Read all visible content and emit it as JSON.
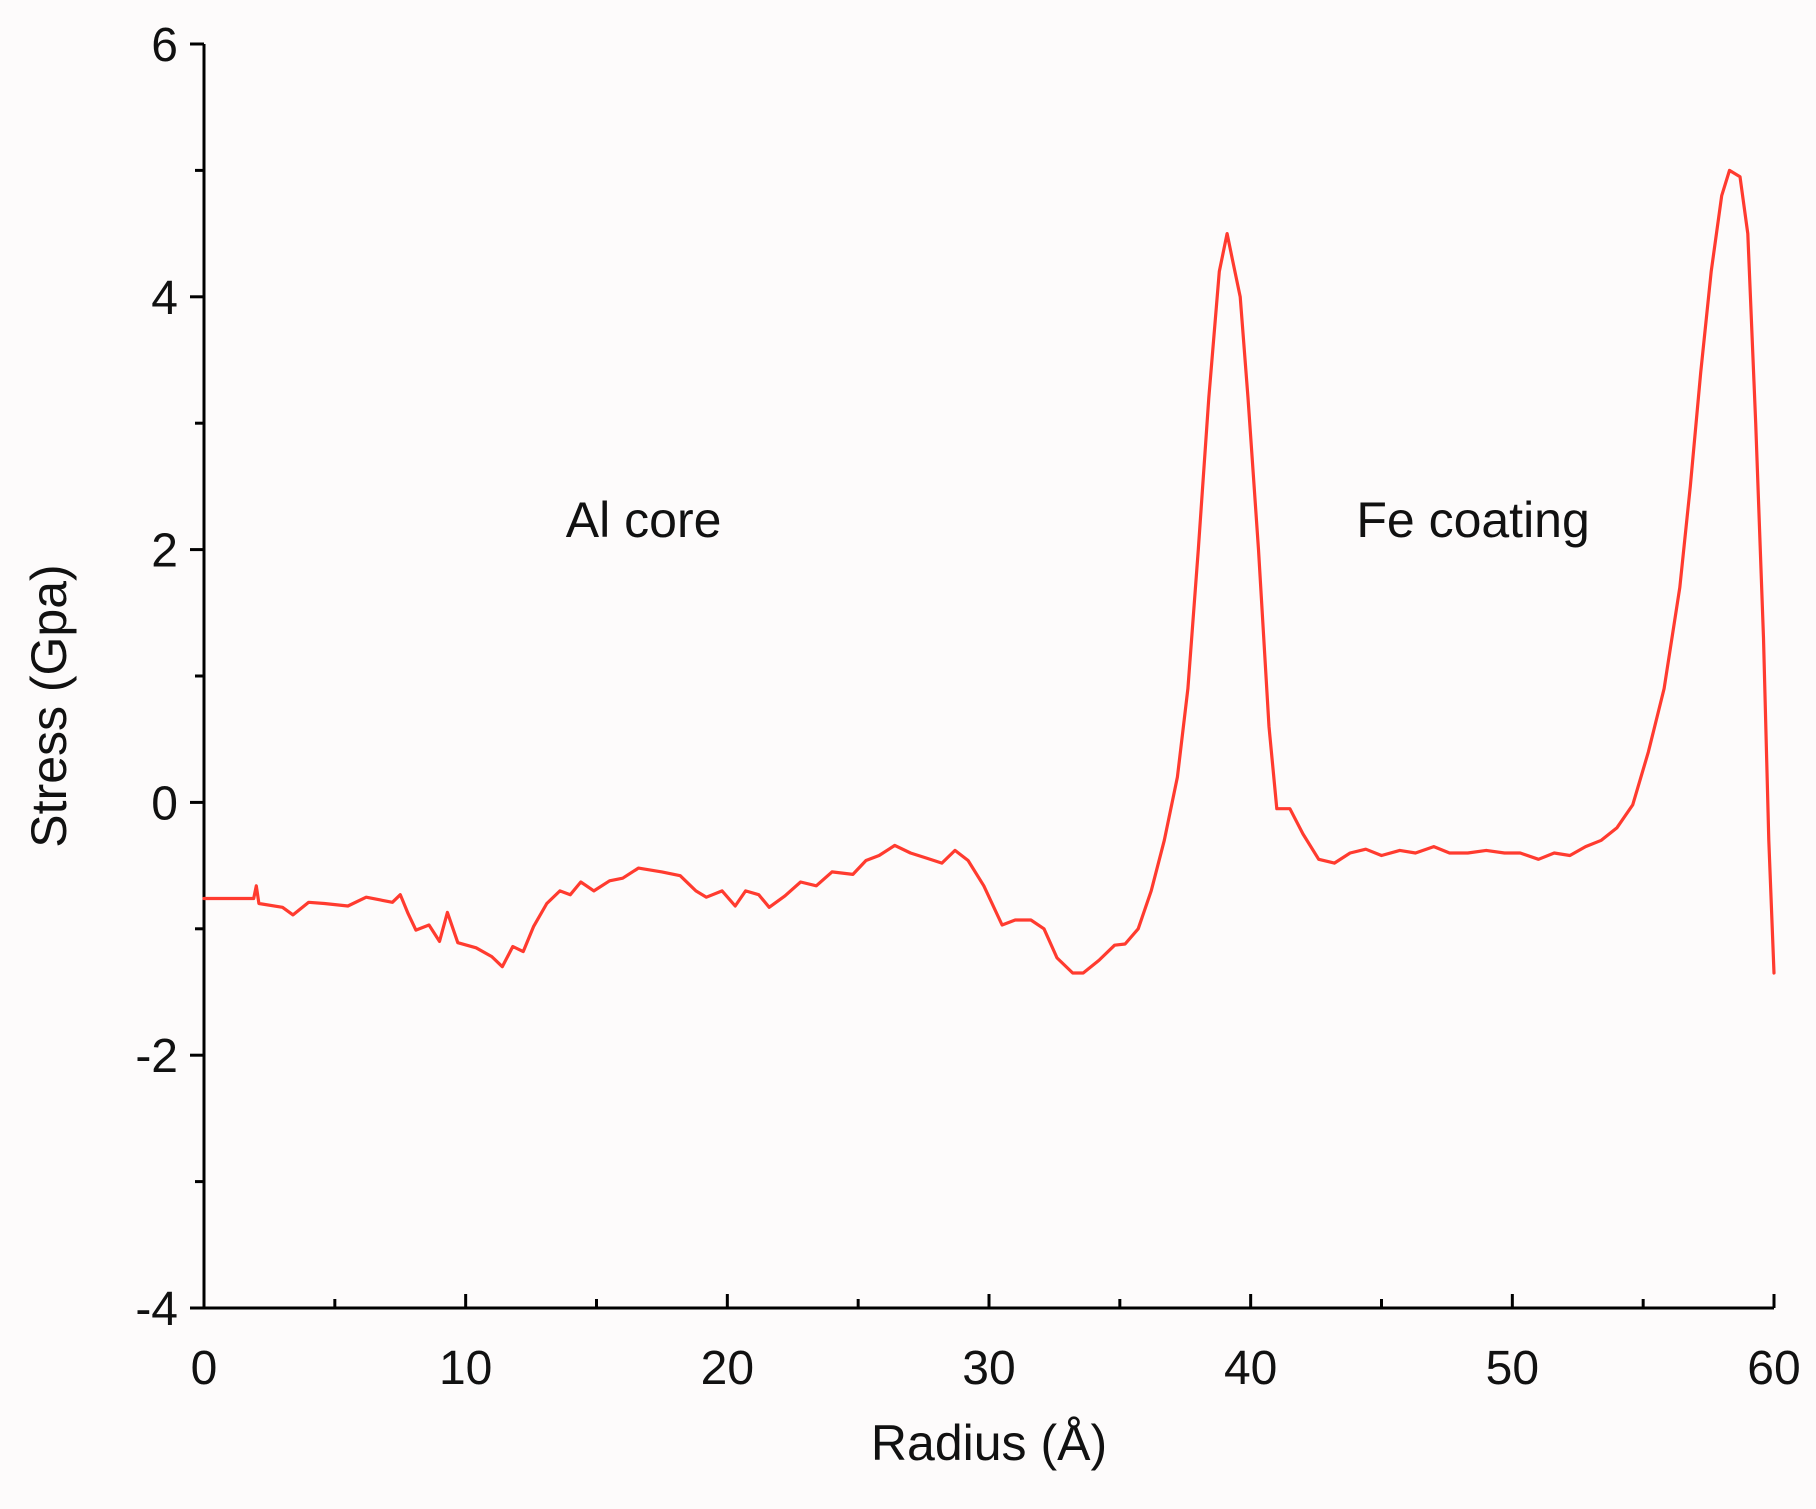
{
  "chart_data": {
    "type": "line",
    "title": "",
    "xlabel": "Radius (Å)",
    "ylabel": "Stress (Gpa)",
    "xlim": [
      0,
      60
    ],
    "ylim": [
      -4,
      6
    ],
    "x_ticks": [
      0,
      10,
      20,
      30,
      40,
      50,
      60
    ],
    "x_tick_labels": [
      "0",
      "10",
      "20",
      "30",
      "40",
      "50",
      "60"
    ],
    "x_minor_ticks": [
      5,
      15,
      25,
      35,
      45,
      55
    ],
    "y_ticks": [
      -4,
      -2,
      0,
      2,
      4,
      6
    ],
    "y_tick_labels": [
      "-4",
      "-2",
      "0",
      "2",
      "4",
      "6"
    ],
    "y_minor_ticks": [
      -3,
      -1,
      1,
      3,
      5
    ],
    "grid": false,
    "legend": "none",
    "series": [
      {
        "color": "#ff3b2f",
        "points": [
          [
            0,
            -0.76
          ],
          [
            1.5,
            -0.76
          ],
          [
            1.9,
            -0.76
          ],
          [
            2.0,
            -0.66
          ],
          [
            2.1,
            -0.8
          ],
          [
            3.0,
            -0.83
          ],
          [
            3.4,
            -0.89
          ],
          [
            4.0,
            -0.79
          ],
          [
            4.6,
            -0.8
          ],
          [
            5.5,
            -0.82
          ],
          [
            6.2,
            -0.75
          ],
          [
            7.2,
            -0.79
          ],
          [
            7.5,
            -0.73
          ],
          [
            7.8,
            -0.88
          ],
          [
            8.1,
            -1.01
          ],
          [
            8.6,
            -0.97
          ],
          [
            9.0,
            -1.1
          ],
          [
            9.3,
            -0.87
          ],
          [
            9.7,
            -1.11
          ],
          [
            10.4,
            -1.15
          ],
          [
            11.0,
            -1.22
          ],
          [
            11.4,
            -1.3
          ],
          [
            11.8,
            -1.14
          ],
          [
            12.2,
            -1.18
          ],
          [
            12.6,
            -0.98
          ],
          [
            13.1,
            -0.8
          ],
          [
            13.6,
            -0.7
          ],
          [
            14.0,
            -0.73
          ],
          [
            14.4,
            -0.63
          ],
          [
            14.9,
            -0.7
          ],
          [
            15.5,
            -0.62
          ],
          [
            16.0,
            -0.6
          ],
          [
            16.6,
            -0.52
          ],
          [
            17.5,
            -0.55
          ],
          [
            18.2,
            -0.58
          ],
          [
            18.8,
            -0.7
          ],
          [
            19.2,
            -0.75
          ],
          [
            19.8,
            -0.7
          ],
          [
            20.3,
            -0.82
          ],
          [
            20.7,
            -0.7
          ],
          [
            21.2,
            -0.73
          ],
          [
            21.6,
            -0.83
          ],
          [
            22.2,
            -0.74
          ],
          [
            22.8,
            -0.63
          ],
          [
            23.4,
            -0.66
          ],
          [
            24.0,
            -0.55
          ],
          [
            24.8,
            -0.57
          ],
          [
            25.3,
            -0.46
          ],
          [
            25.8,
            -0.42
          ],
          [
            26.4,
            -0.34
          ],
          [
            27.0,
            -0.4
          ],
          [
            27.6,
            -0.44
          ],
          [
            28.2,
            -0.48
          ],
          [
            28.7,
            -0.38
          ],
          [
            29.2,
            -0.46
          ],
          [
            29.8,
            -0.66
          ],
          [
            30.5,
            -0.97
          ],
          [
            31.0,
            -0.93
          ],
          [
            31.6,
            -0.93
          ],
          [
            32.1,
            -1.0
          ],
          [
            32.6,
            -1.23
          ],
          [
            33.2,
            -1.35
          ],
          [
            33.6,
            -1.35
          ],
          [
            34.2,
            -1.25
          ],
          [
            34.8,
            -1.13
          ],
          [
            35.2,
            -1.12
          ],
          [
            35.7,
            -1.0
          ],
          [
            36.2,
            -0.7
          ],
          [
            36.7,
            -0.3
          ],
          [
            37.2,
            0.2
          ],
          [
            37.6,
            0.9
          ],
          [
            38.0,
            2.0
          ],
          [
            38.4,
            3.2
          ],
          [
            38.8,
            4.2
          ],
          [
            39.1,
            4.5
          ],
          [
            39.3,
            4.3
          ],
          [
            39.6,
            4.0
          ],
          [
            39.9,
            3.2
          ],
          [
            40.3,
            2.0
          ],
          [
            40.7,
            0.6
          ],
          [
            41.0,
            -0.05
          ],
          [
            41.5,
            -0.05
          ],
          [
            42.0,
            -0.25
          ],
          [
            42.6,
            -0.45
          ],
          [
            43.2,
            -0.48
          ],
          [
            43.8,
            -0.4
          ],
          [
            44.4,
            -0.37
          ],
          [
            45.0,
            -0.42
          ],
          [
            45.7,
            -0.38
          ],
          [
            46.3,
            -0.4
          ],
          [
            47.0,
            -0.35
          ],
          [
            47.6,
            -0.4
          ],
          [
            48.3,
            -0.4
          ],
          [
            49.0,
            -0.38
          ],
          [
            49.7,
            -0.4
          ],
          [
            50.3,
            -0.4
          ],
          [
            51.0,
            -0.45
          ],
          [
            51.6,
            -0.4
          ],
          [
            52.2,
            -0.42
          ],
          [
            52.8,
            -0.35
          ],
          [
            53.4,
            -0.3
          ],
          [
            54.0,
            -0.2
          ],
          [
            54.6,
            -0.02
          ],
          [
            55.2,
            0.4
          ],
          [
            55.8,
            0.9
          ],
          [
            56.4,
            1.7
          ],
          [
            56.8,
            2.5
          ],
          [
            57.2,
            3.4
          ],
          [
            57.6,
            4.2
          ],
          [
            58.0,
            4.8
          ],
          [
            58.3,
            5.0
          ],
          [
            58.7,
            4.95
          ],
          [
            59.0,
            4.5
          ],
          [
            59.3,
            3.0
          ],
          [
            59.6,
            1.3
          ],
          [
            59.8,
            -0.3
          ],
          [
            60.0,
            -1.35
          ]
        ]
      }
    ],
    "annotations": [
      {
        "text": "Al core",
        "x": 16.8,
        "y": 2.1
      },
      {
        "text": "Fe coating",
        "x": 48.5,
        "y": 2.1
      }
    ]
  }
}
